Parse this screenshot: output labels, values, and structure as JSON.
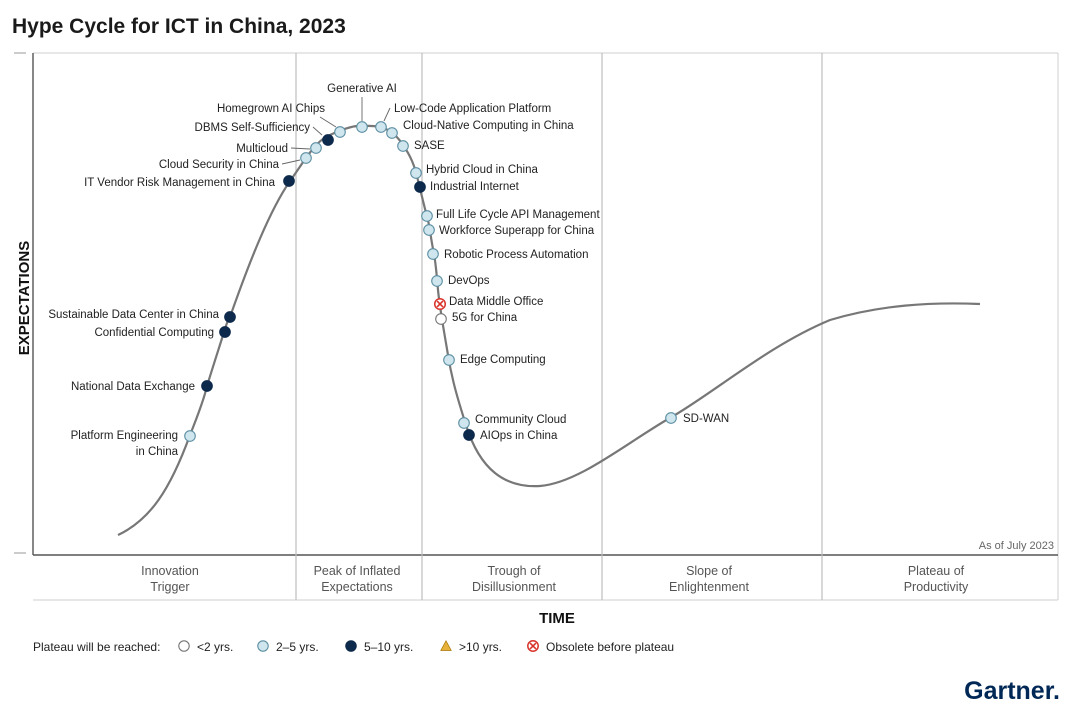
{
  "chart_data": {
    "type": "hype-cycle",
    "title": "Hype Cycle for ICT in China, 2023",
    "xlabel": "TIME",
    "ylabel": "EXPECTATIONS",
    "as_of": "As of July 2023",
    "phases": [
      {
        "line1": "Innovation",
        "line2": "Trigger"
      },
      {
        "line1": "Peak of Inflated",
        "line2": "Expectations"
      },
      {
        "line1": "Trough of",
        "line2": "Disillusionment"
      },
      {
        "line1": "Slope of",
        "line2": "Enlightenment"
      },
      {
        "line1": "Plateau of",
        "line2": "Productivity"
      }
    ],
    "legend": {
      "title": "Plateau will be reached:",
      "items": [
        {
          "key": "lt2",
          "label": "<2 yrs."
        },
        {
          "key": "2to5",
          "label": "2–5 yrs."
        },
        {
          "key": "5to10",
          "label": "5–10 yrs."
        },
        {
          "key": "gt10",
          "label": ">10 yrs."
        },
        {
          "key": "obsolete",
          "label": "Obsolete before plateau"
        }
      ]
    },
    "colors": {
      "lt2": "#ffffff",
      "2to5": "#cfe6ee",
      "5to10": "#0d2a4c",
      "gt10": "#e8b23a",
      "obsolete": "#d9342b",
      "curve": "#777777"
    },
    "points": [
      {
        "name": "Platform Engineering",
        "name2": "in China",
        "category": "2to5"
      },
      {
        "name": "National Data Exchange",
        "category": "5to10"
      },
      {
        "name": "Confidential Computing",
        "category": "5to10"
      },
      {
        "name": "Sustainable Data Center in China",
        "category": "5to10"
      },
      {
        "name": "IT Vendor Risk Management in China",
        "category": "5to10"
      },
      {
        "name": "Cloud Security in China",
        "category": "2to5"
      },
      {
        "name": "Multicloud",
        "category": "2to5"
      },
      {
        "name": "DBMS Self-Sufficiency",
        "category": "5to10"
      },
      {
        "name": "Homegrown AI Chips",
        "category": "2to5"
      },
      {
        "name": "Generative AI",
        "category": "2to5"
      },
      {
        "name": "Low-Code Application Platform",
        "category": "2to5"
      },
      {
        "name": "Cloud-Native Computing in China",
        "category": "2to5"
      },
      {
        "name": "SASE",
        "category": "2to5"
      },
      {
        "name": "Hybrid Cloud in China",
        "category": "2to5"
      },
      {
        "name": "Industrial Internet",
        "category": "5to10"
      },
      {
        "name": "Full Life Cycle API Management",
        "category": "2to5"
      },
      {
        "name": "Workforce Superapp for China",
        "category": "2to5"
      },
      {
        "name": "Robotic Process Automation",
        "category": "2to5"
      },
      {
        "name": "DevOps",
        "category": "2to5"
      },
      {
        "name": "Data Middle Office",
        "category": "obsolete"
      },
      {
        "name": "5G for China",
        "category": "lt2"
      },
      {
        "name": "Edge Computing",
        "category": "2to5"
      },
      {
        "name": "Community Cloud",
        "category": "2to5"
      },
      {
        "name": "AIOps in China",
        "category": "5to10"
      },
      {
        "name": "SD-WAN",
        "category": "2to5"
      }
    ]
  },
  "brand": "Gartner."
}
